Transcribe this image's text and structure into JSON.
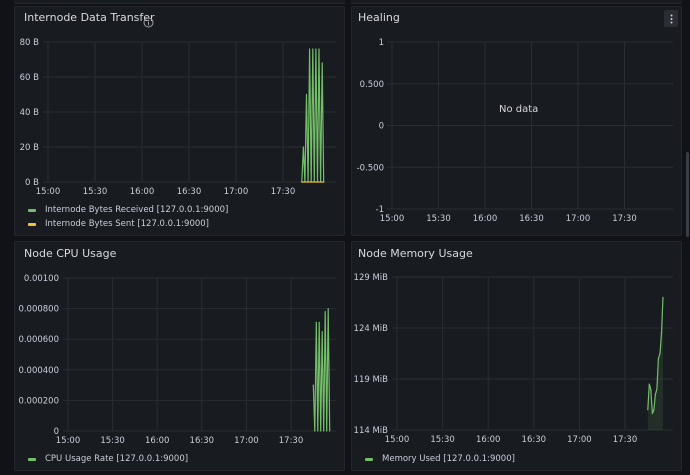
{
  "colors": {
    "received": "#73bf69",
    "sent": "#f2c037",
    "cpu": "#73bf69",
    "memory": "#73bf69",
    "grid": "#2a2d33",
    "axis_text": "#ccccdc"
  },
  "panels": {
    "internode": {
      "title": "Internode Data Transfer",
      "info_icon": "info-icon",
      "chart_data": {
        "type": "line",
        "title": "Internode Data Transfer",
        "x_ticks": [
          "15:00",
          "15:30",
          "16:00",
          "16:30",
          "17:00",
          "17:30"
        ],
        "y_ticks": [
          "80 B",
          "60 B",
          "40 B",
          "20 B",
          "0 B"
        ],
        "ylim": [
          0,
          80
        ],
        "series": [
          {
            "name": "Internode Bytes Received [127.0.0.1:9000]",
            "color": "#73bf69",
            "x": [
              "17:42",
              "17:43",
              "17:44",
              "17:45",
              "17:46",
              "17:47",
              "17:48",
              "17:49",
              "17:50",
              "17:51",
              "17:52",
              "17:53",
              "17:54",
              "17:55",
              "17:56"
            ],
            "y": [
              0,
              20,
              0,
              50,
              0,
              76,
              0,
              76,
              0,
              76,
              0,
              76,
              0,
              68,
              0
            ]
          },
          {
            "name": "Internode Bytes Sent [127.0.0.1:9000]",
            "color": "#f2c037",
            "x": [
              "17:42",
              "17:56"
            ],
            "y": [
              0,
              0
            ]
          }
        ]
      }
    },
    "healing": {
      "title": "Healing",
      "no_data": "No data",
      "menu_icon": "kebab-menu-icon",
      "chart_data": {
        "type": "line",
        "title": "Healing",
        "x_ticks": [
          "15:00",
          "15:30",
          "16:00",
          "16:30",
          "17:00",
          "17:30"
        ],
        "y_ticks": [
          "1",
          "0.500",
          "0",
          "-0.500",
          "-1"
        ],
        "ylim": [
          -1,
          1
        ],
        "series": []
      }
    },
    "cpu": {
      "title": "Node CPU Usage",
      "chart_data": {
        "type": "line",
        "title": "Node CPU Usage",
        "x_ticks": [
          "15:00",
          "15:30",
          "16:00",
          "16:30",
          "17:00",
          "17:30"
        ],
        "y_ticks": [
          "0.00100",
          "0.000800",
          "0.000600",
          "0.000400",
          "0.000200",
          "0"
        ],
        "ylim": [
          0,
          0.001
        ],
        "series": [
          {
            "name": "CPU Usage Rate [127.0.0.1:9000]",
            "color": "#73bf69",
            "x": [
              "17:45",
              "17:46",
              "17:47",
              "17:48",
              "17:49",
              "17:50",
              "17:51",
              "17:52",
              "17:53",
              "17:54",
              "17:55",
              "17:56"
            ],
            "y": [
              0.0003,
              0,
              0.00071,
              0,
              0.00071,
              0,
              0.00065,
              0,
              0.00078,
              0,
              0.0008,
              0
            ]
          }
        ]
      }
    },
    "memory": {
      "title": "Node Memory Usage",
      "chart_data": {
        "type": "area",
        "title": "Node Memory Usage",
        "x_ticks": [
          "15:00",
          "15:30",
          "16:00",
          "16:30",
          "17:00",
          "17:30"
        ],
        "y_ticks": [
          "129 MiB",
          "124 MiB",
          "119 MiB",
          "114 MiB"
        ],
        "ylim": [
          114,
          129
        ],
        "series": [
          {
            "name": "Memory Used [127.0.0.1:9000]",
            "color": "#73bf69",
            "x": [
              "17:45",
              "17:46",
              "17:47",
              "17:48",
              "17:49",
              "17:50",
              "17:51",
              "17:52",
              "17:53",
              "17:54",
              "17:55"
            ],
            "y": [
              116.0,
              118.5,
              118.0,
              115.6,
              116.0,
              117.5,
              118.0,
              121.0,
              121.5,
              123.5,
              127.0
            ]
          }
        ]
      }
    }
  }
}
